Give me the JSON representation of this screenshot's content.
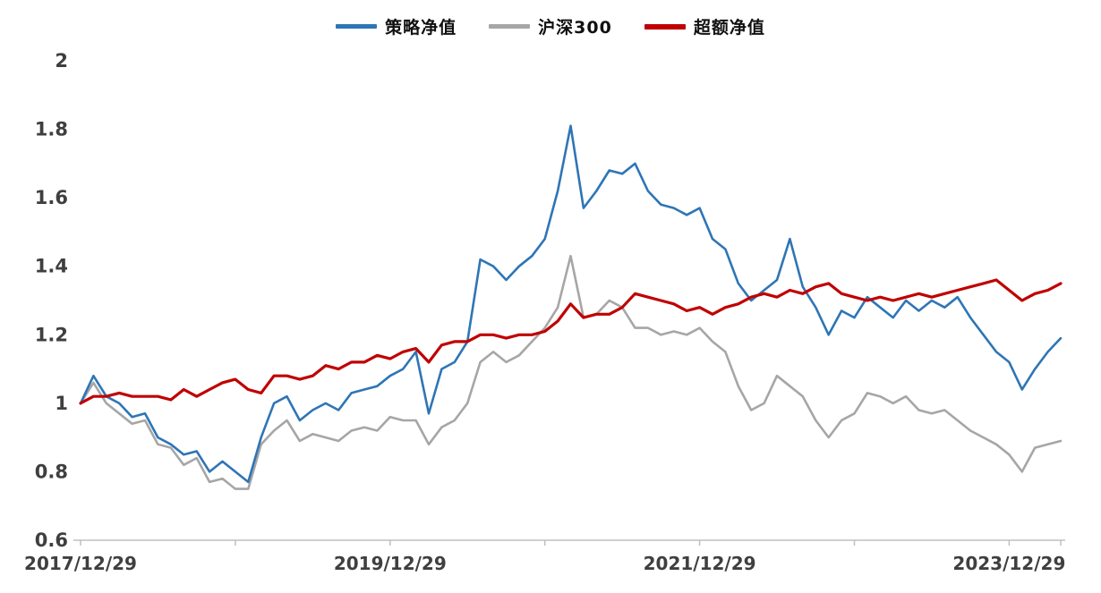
{
  "chart_data": {
    "type": "line",
    "grid": false,
    "legend_position": "top-center",
    "ylim": [
      0.6,
      2
    ],
    "y_ticks": [
      0.6,
      0.8,
      1,
      1.2,
      1.4,
      1.6,
      1.8,
      2
    ],
    "x_tick_labels": [
      "2017/12/29",
      "2019/12/29",
      "2021/12/29",
      "2023/12/29"
    ],
    "x_tick_indices": [
      0,
      24,
      48,
      72
    ],
    "x_minor_tick_indices": [
      0,
      12,
      24,
      36,
      48,
      60,
      72,
      76
    ],
    "x": [
      "2017/12",
      "2018/01",
      "2018/02",
      "2018/03",
      "2018/04",
      "2018/05",
      "2018/06",
      "2018/07",
      "2018/08",
      "2018/09",
      "2018/10",
      "2018/11",
      "2018/12",
      "2019/01",
      "2019/02",
      "2019/03",
      "2019/04",
      "2019/05",
      "2019/06",
      "2019/07",
      "2019/08",
      "2019/09",
      "2019/10",
      "2019/11",
      "2019/12",
      "2020/01",
      "2020/02",
      "2020/03",
      "2020/04",
      "2020/05",
      "2020/06",
      "2020/07",
      "2020/08",
      "2020/09",
      "2020/10",
      "2020/11",
      "2020/12",
      "2021/01",
      "2021/02",
      "2021/03",
      "2021/04",
      "2021/05",
      "2021/06",
      "2021/07",
      "2021/08",
      "2021/09",
      "2021/10",
      "2021/11",
      "2021/12",
      "2022/01",
      "2022/02",
      "2022/03",
      "2022/04",
      "2022/05",
      "2022/06",
      "2022/07",
      "2022/08",
      "2022/09",
      "2022/10",
      "2022/11",
      "2022/12",
      "2023/01",
      "2023/02",
      "2023/03",
      "2023/04",
      "2023/05",
      "2023/06",
      "2023/07",
      "2023/08",
      "2023/09",
      "2023/10",
      "2023/11",
      "2023/12",
      "2024/01",
      "2024/02",
      "2024/03",
      "2024/04"
    ],
    "series": [
      {
        "name": "策略净值",
        "color": "#2E75B6",
        "stroke_width": 2.6,
        "values": [
          1.0,
          1.08,
          1.02,
          1.0,
          0.96,
          0.97,
          0.9,
          0.88,
          0.85,
          0.86,
          0.8,
          0.83,
          0.8,
          0.77,
          0.9,
          1.0,
          1.02,
          0.95,
          0.98,
          1.0,
          0.98,
          1.03,
          1.04,
          1.05,
          1.08,
          1.1,
          1.15,
          0.97,
          1.1,
          1.12,
          1.18,
          1.42,
          1.4,
          1.36,
          1.4,
          1.43,
          1.48,
          1.62,
          1.81,
          1.57,
          1.62,
          1.68,
          1.67,
          1.7,
          1.62,
          1.58,
          1.57,
          1.55,
          1.57,
          1.48,
          1.45,
          1.35,
          1.3,
          1.33,
          1.36,
          1.48,
          1.34,
          1.28,
          1.2,
          1.27,
          1.25,
          1.31,
          1.28,
          1.25,
          1.3,
          1.27,
          1.3,
          1.28,
          1.31,
          1.25,
          1.2,
          1.15,
          1.12,
          1.04,
          1.1,
          1.15,
          1.19
        ]
      },
      {
        "name": "沪深300",
        "color": "#A6A6A6",
        "stroke_width": 2.6,
        "values": [
          1.0,
          1.06,
          1.0,
          0.97,
          0.94,
          0.95,
          0.88,
          0.87,
          0.82,
          0.84,
          0.77,
          0.78,
          0.75,
          0.75,
          0.88,
          0.92,
          0.95,
          0.89,
          0.91,
          0.9,
          0.89,
          0.92,
          0.93,
          0.92,
          0.96,
          0.95,
          0.95,
          0.88,
          0.93,
          0.95,
          1.0,
          1.12,
          1.15,
          1.12,
          1.14,
          1.18,
          1.22,
          1.28,
          1.43,
          1.25,
          1.26,
          1.3,
          1.28,
          1.22,
          1.22,
          1.2,
          1.21,
          1.2,
          1.22,
          1.18,
          1.15,
          1.05,
          0.98,
          1.0,
          1.08,
          1.05,
          1.02,
          0.95,
          0.9,
          0.95,
          0.97,
          1.03,
          1.02,
          1.0,
          1.02,
          0.98,
          0.97,
          0.98,
          0.95,
          0.92,
          0.9,
          0.88,
          0.85,
          0.8,
          0.87,
          0.88,
          0.89
        ]
      },
      {
        "name": "超额净值",
        "color": "#C00000",
        "stroke_width": 3.2,
        "values": [
          1.0,
          1.02,
          1.02,
          1.03,
          1.02,
          1.02,
          1.02,
          1.01,
          1.04,
          1.02,
          1.04,
          1.06,
          1.07,
          1.04,
          1.03,
          1.08,
          1.08,
          1.07,
          1.08,
          1.11,
          1.1,
          1.12,
          1.12,
          1.14,
          1.13,
          1.15,
          1.16,
          1.12,
          1.17,
          1.18,
          1.18,
          1.2,
          1.2,
          1.19,
          1.2,
          1.2,
          1.21,
          1.24,
          1.29,
          1.25,
          1.26,
          1.26,
          1.28,
          1.32,
          1.31,
          1.3,
          1.29,
          1.27,
          1.28,
          1.26,
          1.28,
          1.29,
          1.31,
          1.32,
          1.31,
          1.33,
          1.32,
          1.34,
          1.35,
          1.32,
          1.31,
          1.3,
          1.31,
          1.3,
          1.31,
          1.32,
          1.31,
          1.32,
          1.33,
          1.34,
          1.35,
          1.36,
          1.33,
          1.3,
          1.32,
          1.33,
          1.35
        ]
      }
    ]
  }
}
